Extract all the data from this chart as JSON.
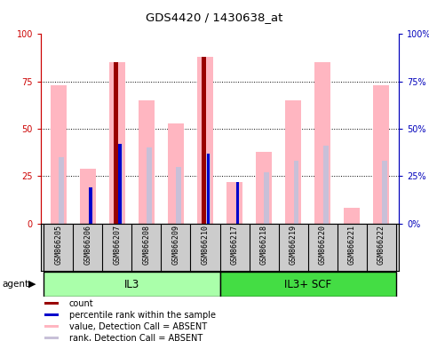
{
  "title": "GDS4420 / 1430638_at",
  "samples": [
    "GSM866205",
    "GSM866206",
    "GSM866207",
    "GSM866208",
    "GSM866209",
    "GSM866210",
    "GSM866217",
    "GSM866218",
    "GSM866219",
    "GSM866220",
    "GSM866221",
    "GSM866222"
  ],
  "pink_values": [
    73,
    29,
    85,
    65,
    53,
    88,
    22,
    38,
    65,
    85,
    8,
    73
  ],
  "lavender_values": [
    35,
    0,
    42,
    40,
    30,
    37,
    0,
    27,
    33,
    41,
    0,
    33
  ],
  "dark_red_values": [
    0,
    0,
    85,
    0,
    0,
    88,
    0,
    0,
    0,
    0,
    0,
    0
  ],
  "blue_values": [
    0,
    19,
    42,
    0,
    0,
    37,
    22,
    0,
    0,
    0,
    0,
    0
  ],
  "ylim": [
    0,
    100
  ],
  "yticks": [
    0,
    25,
    50,
    75,
    100
  ],
  "color_pink": "#FFB6C1",
  "color_lavender": "#C8C0D8",
  "color_darkred": "#990000",
  "color_blue": "#0000CC",
  "color_axis_left": "#CC0000",
  "color_axis_right": "#0000BB",
  "il3_color": "#AAFFAA",
  "scf_color": "#44DD44",
  "legend_items": [
    {
      "color": "#990000",
      "label": "count"
    },
    {
      "color": "#0000CC",
      "label": "percentile rank within the sample"
    },
    {
      "color": "#FFB6C1",
      "label": "value, Detection Call = ABSENT"
    },
    {
      "color": "#C8C0D8",
      "label": "rank, Detection Call = ABSENT"
    }
  ],
  "agent_label": "agent",
  "background_color": "#FFFFFF"
}
